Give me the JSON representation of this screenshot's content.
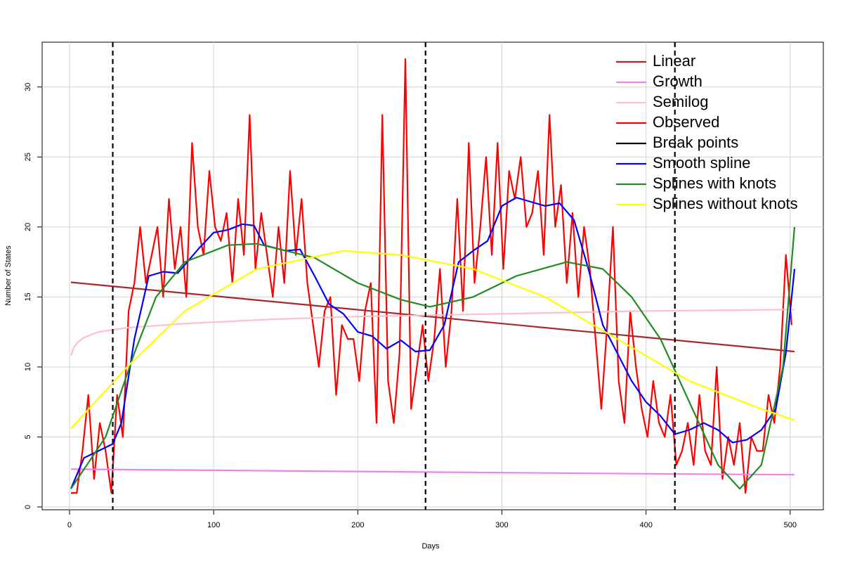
{
  "chart_data": {
    "type": "line",
    "x_label": "Days",
    "y_label": "Number of States",
    "xlim": [
      -19,
      523
    ],
    "ylim": [
      -0.2,
      33.2
    ],
    "xticks": [
      0,
      100,
      200,
      300,
      400,
      500
    ],
    "yticks": [
      0,
      5,
      10,
      15,
      20,
      25,
      30
    ],
    "grid": true,
    "legend": "top-right",
    "series": [
      {
        "name": "Linear",
        "color": "#a52a2a",
        "x": [
          1,
          503
        ],
        "values": [
          16.05,
          11.1
        ]
      },
      {
        "name": "Growth",
        "color": "#ee82ee",
        "x": [
          1,
          100,
          200,
          300,
          400,
          503
        ],
        "values": [
          2.7,
          2.62,
          2.53,
          2.45,
          2.37,
          2.3
        ]
      },
      {
        "name": "Semilog",
        "color": "#ffc0cb",
        "x": [
          1,
          3,
          6,
          10,
          20,
          40,
          80,
          140,
          200,
          300,
          400,
          503
        ],
        "values": [
          10.8,
          11.4,
          11.8,
          12.1,
          12.5,
          12.8,
          13.1,
          13.4,
          13.6,
          13.8,
          14,
          14.1
        ]
      },
      {
        "name": "Observed",
        "color": "#ff0000",
        "x": [
          1,
          5,
          9,
          13,
          17,
          21,
          25,
          29,
          33,
          37,
          41,
          45,
          49,
          53,
          57,
          61,
          65,
          69,
          73,
          77,
          81,
          85,
          89,
          93,
          97,
          101,
          105,
          109,
          113,
          117,
          121,
          125,
          129,
          133,
          137,
          141,
          145,
          149,
          153,
          157,
          161,
          165,
          169,
          173,
          177,
          181,
          185,
          189,
          193,
          197,
          201,
          205,
          209,
          213,
          217,
          221,
          225,
          229,
          233,
          237,
          241,
          245,
          249,
          253,
          257,
          261,
          265,
          269,
          273,
          277,
          281,
          285,
          289,
          293,
          297,
          301,
          305,
          309,
          313,
          317,
          321,
          325,
          329,
          333,
          337,
          341,
          345,
          349,
          353,
          357,
          361,
          365,
          369,
          373,
          377,
          381,
          385,
          389,
          393,
          397,
          401,
          405,
          409,
          413,
          417,
          421,
          425,
          429,
          433,
          437,
          441,
          445,
          449,
          453,
          457,
          461,
          465,
          469,
          473,
          477,
          481,
          485,
          489,
          493,
          497,
          501
        ],
        "values": [
          1,
          1,
          4,
          8,
          2,
          6,
          4,
          1,
          8,
          5,
          14,
          16,
          20,
          16,
          18,
          20,
          15,
          22,
          17,
          20,
          15,
          26,
          20,
          18,
          24,
          20,
          19,
          21,
          16,
          22,
          18,
          28,
          17,
          21,
          18,
          15,
          20,
          16,
          24,
          18,
          22,
          16,
          13,
          10,
          14,
          15,
          8,
          13,
          12,
          12,
          9,
          14,
          16,
          6,
          28,
          9,
          6,
          11,
          32,
          7,
          10,
          13,
          9,
          12,
          17,
          10,
          14,
          22,
          14,
          26,
          16,
          20,
          25,
          18,
          26,
          17,
          24,
          22,
          25,
          20,
          21,
          24,
          18,
          28,
          20,
          23,
          16,
          21,
          15,
          20,
          17,
          12,
          7,
          13,
          20,
          9,
          6,
          14,
          10,
          7,
          5,
          9,
          6,
          5,
          8,
          3,
          4,
          6,
          3,
          8,
          4,
          3,
          10,
          2,
          5,
          3,
          6,
          1,
          5,
          4,
          4,
          8,
          6,
          10,
          18,
          13
        ]
      },
      {
        "name": "Break points",
        "color": "#000000",
        "x": [
          30,
          247,
          420
        ]
      },
      {
        "name": "Smooth spline",
        "color": "#0000ff",
        "x": [
          1,
          10,
          20,
          30,
          36,
          45,
          55,
          65,
          75,
          90,
          100,
          110,
          120,
          128,
          135,
          150,
          160,
          170,
          180,
          190,
          200,
          210,
          220,
          230,
          240,
          250,
          260,
          270,
          280,
          290,
          300,
          310,
          320,
          330,
          340,
          350,
          360,
          370,
          380,
          390,
          400,
          410,
          420,
          430,
          440,
          450,
          460,
          470,
          480,
          490,
          497,
          503
        ],
        "values": [
          1.3,
          3.5,
          4,
          4.5,
          6,
          12,
          16.5,
          16.8,
          16.7,
          18.5,
          19.6,
          19.8,
          20.2,
          20.1,
          18.7,
          18.3,
          18.4,
          16.5,
          14.5,
          13.8,
          12.5,
          12.2,
          11.3,
          11.9,
          11.1,
          11.2,
          13,
          17.5,
          18.3,
          19,
          21.5,
          22.1,
          21.8,
          21.5,
          21.7,
          20.5,
          17,
          13,
          11,
          9,
          7.5,
          6.5,
          5.2,
          5.5,
          6,
          5.5,
          4.6,
          4.8,
          5.5,
          7,
          11,
          17
        ]
      },
      {
        "name": "Splines with knots",
        "color": "#228b22",
        "x": [
          1,
          25,
          45,
          60,
          80,
          110,
          130,
          170,
          200,
          230,
          250,
          280,
          310,
          345,
          370,
          390,
          410,
          430,
          450,
          465,
          480,
          495,
          503
        ],
        "values": [
          1.3,
          5,
          11,
          15,
          17.5,
          18.7,
          18.8,
          17.8,
          16,
          14.8,
          14.3,
          15,
          16.5,
          17.5,
          17,
          15,
          12,
          7.5,
          3,
          1.3,
          3,
          10,
          20
        ]
      },
      {
        "name": "Splines without knots",
        "color": "#ffff00",
        "x": [
          1,
          40,
          80,
          130,
          190,
          230,
          280,
          330,
          380,
          430,
          480,
          503
        ],
        "values": [
          5.6,
          10,
          14,
          17,
          18.3,
          18,
          17,
          15,
          12,
          9,
          7,
          6.2
        ]
      }
    ]
  }
}
